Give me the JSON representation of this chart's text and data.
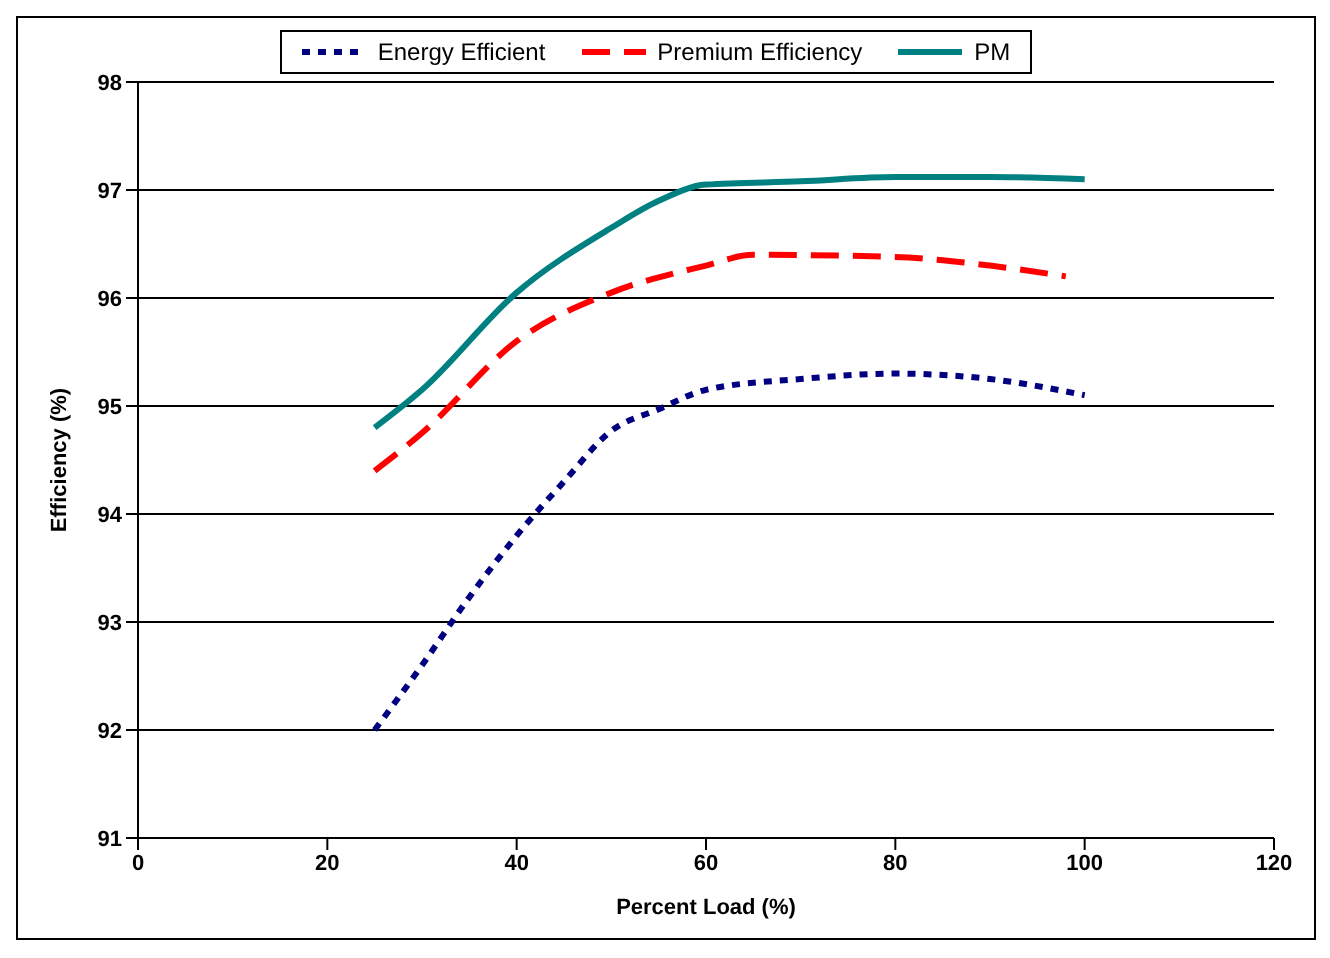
{
  "chart_data": {
    "type": "line",
    "xlabel": "Percent Load (%)",
    "ylabel": "Efficiency (%)",
    "xlim": [
      0,
      120
    ],
    "xticks": [
      0,
      20,
      40,
      60,
      80,
      100,
      120
    ],
    "ylim": [
      91,
      98
    ],
    "yticks": [
      91,
      92,
      93,
      94,
      95,
      96,
      97,
      98
    ],
    "grid": "y",
    "legend": "top",
    "marker": "none",
    "series": [
      {
        "name": "Energy Efficient",
        "color": "#000080",
        "line_style": "dotted",
        "x": [
          25,
          30,
          35,
          40,
          45,
          50,
          55,
          60,
          70,
          80,
          90,
          100
        ],
        "values": [
          92.0,
          92.6,
          93.23,
          93.8,
          94.3,
          94.77,
          94.97,
          95.15,
          95.25,
          95.3,
          95.25,
          95.1
        ]
      },
      {
        "name": "Premium Efficiency",
        "color": "#ff0000",
        "line_style": "dashed",
        "x": [
          25,
          30,
          40,
          50,
          60,
          65,
          80,
          90,
          98
        ],
        "values": [
          94.4,
          94.75,
          95.6,
          96.05,
          96.3,
          96.4,
          96.38,
          96.3,
          96.2
        ]
      },
      {
        "name": "PM",
        "color": "#008080",
        "line_style": "solid",
        "x": [
          25,
          30,
          40,
          50,
          55,
          60,
          70,
          80,
          90,
          100
        ],
        "values": [
          94.8,
          95.15,
          96.05,
          96.65,
          96.9,
          97.05,
          97.08,
          97.12,
          97.12,
          97.1
        ]
      }
    ]
  }
}
